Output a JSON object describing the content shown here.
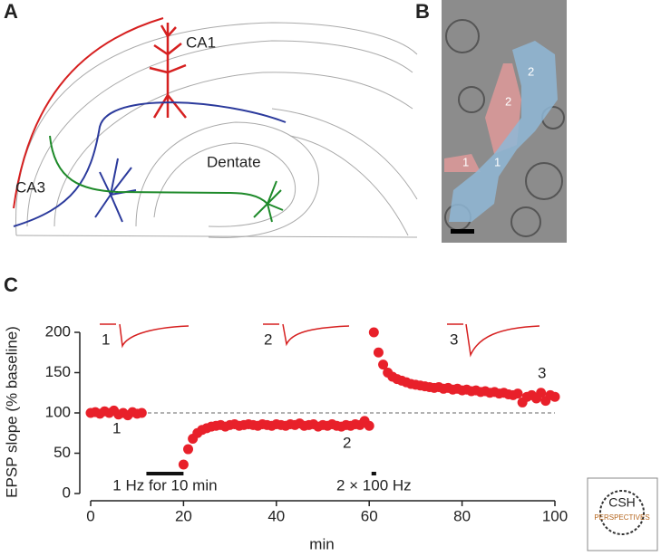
{
  "panel_a": {
    "letter": "A",
    "labels": [
      "CA1",
      "CA3",
      "Dentate"
    ]
  },
  "panel_b": {
    "letter": "B",
    "labels": [
      "2",
      "2",
      "1",
      "1"
    ]
  },
  "panel_c": {
    "letter": "C"
  },
  "logo": {
    "title": "CSH",
    "subtitle": "PERSPECTIVES"
  },
  "chart_data": {
    "type": "scatter",
    "x_label": "min",
    "y_label": "EPSP slope (% baseline)",
    "color": "#e8202a",
    "x": [
      0,
      1,
      2,
      3,
      4,
      5,
      6,
      7,
      8,
      9,
      10,
      11,
      20,
      21,
      22,
      23,
      24,
      25,
      26,
      27,
      28,
      29,
      30,
      31,
      32,
      33,
      34,
      35,
      36,
      37,
      38,
      39,
      40,
      41,
      42,
      43,
      44,
      45,
      46,
      47,
      48,
      49,
      50,
      51,
      52,
      53,
      54,
      55,
      56,
      57,
      58,
      59,
      60,
      61,
      62,
      63,
      64,
      65,
      66,
      67,
      68,
      69,
      70,
      71,
      72,
      73,
      74,
      75,
      76,
      77,
      78,
      79,
      80,
      81,
      82,
      83,
      84,
      85,
      86,
      87,
      88,
      89,
      90,
      91,
      92,
      93,
      94,
      95,
      96,
      97,
      98,
      99,
      100
    ],
    "values": [
      100,
      101,
      99,
      102,
      100,
      103,
      98,
      100,
      97,
      101,
      99,
      100,
      36,
      55,
      68,
      75,
      79,
      81,
      83,
      84,
      85,
      83,
      85,
      86,
      84,
      85,
      86,
      85,
      84,
      86,
      85,
      84,
      86,
      85,
      84,
      86,
      85,
      87,
      84,
      85,
      86,
      83,
      85,
      84,
      86,
      84,
      83,
      85,
      84,
      86,
      85,
      90,
      84,
      200,
      175,
      160,
      150,
      145,
      142,
      140,
      138,
      136,
      135,
      134,
      133,
      132,
      131,
      132,
      130,
      131,
      129,
      130,
      128,
      129,
      127,
      128,
      126,
      127,
      125,
      126,
      124,
      125,
      123,
      122,
      124,
      113,
      120,
      122,
      118,
      125,
      115,
      122,
      120
    ],
    "baseline": 100,
    "stimuli": [
      {
        "label": "1 Hz for 10 min",
        "start": 12,
        "end": 20
      },
      {
        "label": "2 × 100 Hz",
        "start": 60.5,
        "end": 61.5
      }
    ],
    "annotations": [
      "1",
      "2",
      "3"
    ],
    "trace_labels": [
      "1",
      "2",
      "3"
    ],
    "xlim": [
      0,
      100
    ],
    "xticks": [
      0,
      20,
      40,
      60,
      80,
      100
    ],
    "ylim": [
      0,
      200
    ],
    "yticks": [
      0,
      50,
      100,
      150,
      200
    ]
  }
}
